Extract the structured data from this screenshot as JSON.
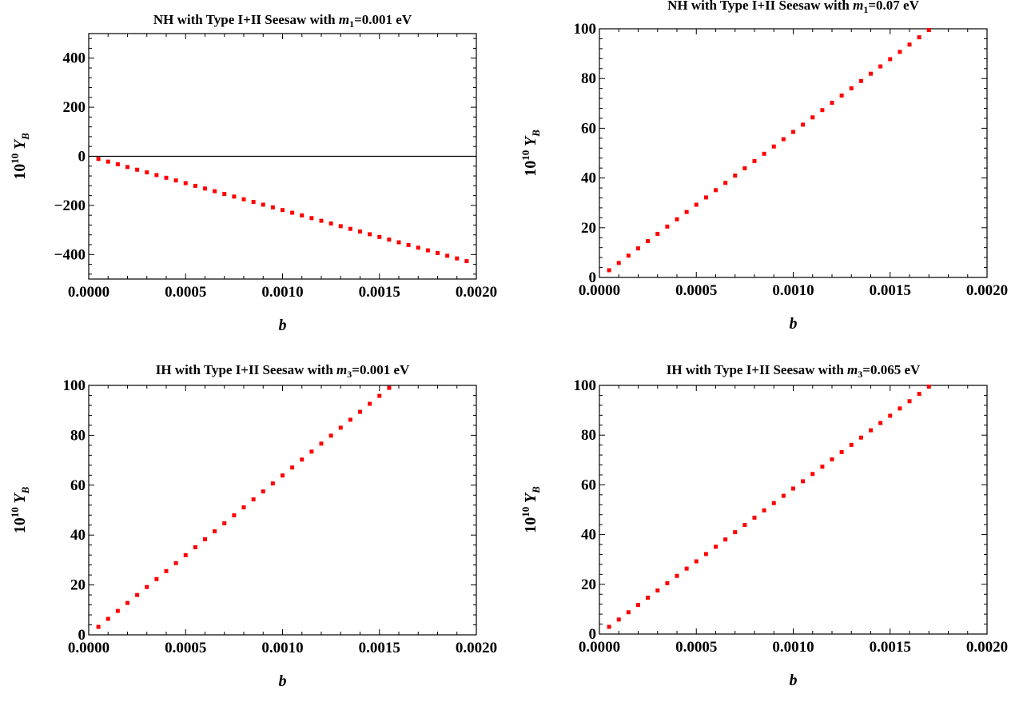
{
  "colors": {
    "marker": "#ff0000",
    "frame": "#000000",
    "background": "#ffffff"
  },
  "chart_data": [
    {
      "type": "scatter",
      "title": {
        "prefix": "NH with Type I+II Seesaw with ",
        "var": "m",
        "sub": "1",
        "suffix": "=0.001 eV"
      },
      "xlabel": "b",
      "ylabel": {
        "base": "10",
        "exp": "10",
        "var": "Y",
        "sub": "B"
      },
      "xlim": [
        0,
        0.002
      ],
      "ylim": [
        -500,
        500
      ],
      "xticks": [
        0,
        0.0005,
        0.001,
        0.0015,
        0.002
      ],
      "xtick_labels": [
        "0.0000",
        "0.0005",
        "0.0010",
        "0.0015",
        "0.0020"
      ],
      "yticks": [
        -400,
        -200,
        0,
        200,
        400
      ],
      "ytick_labels": [
        "−400",
        "−200",
        "0",
        "200",
        "400"
      ],
      "zero_line": true,
      "series": [
        {
          "marker": "square",
          "x_start": 5e-05,
          "x_step": 5e-05,
          "count": 39,
          "y_start": -10.7,
          "y_end": -427
        }
      ]
    },
    {
      "type": "scatter",
      "title": {
        "prefix": "NH with Type I+II Seesaw with ",
        "var": "m",
        "sub": "1",
        "suffix": "=0.07 eV"
      },
      "xlabel": "b",
      "ylabel": {
        "base": "10",
        "exp": "10",
        "var": "Y",
        "sub": "B"
      },
      "xlim": [
        0,
        0.002
      ],
      "ylim": [
        0,
        100
      ],
      "xticks": [
        0,
        0.0005,
        0.001,
        0.0015,
        0.002
      ],
      "xtick_labels": [
        "0.0000",
        "0.0005",
        "0.0010",
        "0.0015",
        "0.0020"
      ],
      "yticks": [
        0,
        20,
        40,
        60,
        80,
        100
      ],
      "ytick_labels": [
        "0",
        "20",
        "40",
        "60",
        "80",
        "100"
      ],
      "zero_line": false,
      "series": [
        {
          "marker": "square",
          "x_start": 5e-05,
          "x_step": 5e-05,
          "count": 34,
          "y_start": 2.9,
          "y_end": 99.5
        }
      ]
    },
    {
      "type": "scatter",
      "title": {
        "prefix": "IH with Type I+II Seesaw with ",
        "var": "m",
        "sub": "3",
        "suffix": "=0.001 eV"
      },
      "xlabel": "b",
      "ylabel": {
        "base": "10",
        "exp": "10",
        "var": "Y",
        "sub": "B"
      },
      "xlim": [
        0,
        0.002
      ],
      "ylim": [
        0,
        100
      ],
      "xticks": [
        0,
        0.0005,
        0.001,
        0.0015,
        0.002
      ],
      "xtick_labels": [
        "0.0000",
        "0.0005",
        "0.0010",
        "0.0015",
        "0.0020"
      ],
      "yticks": [
        0,
        20,
        40,
        60,
        80,
        100
      ],
      "ytick_labels": [
        "0",
        "20",
        "40",
        "60",
        "80",
        "100"
      ],
      "zero_line": false,
      "series": [
        {
          "marker": "square",
          "x_start": 5e-05,
          "x_step": 5e-05,
          "count": 31,
          "y_start": 3.2,
          "y_end": 99
        }
      ]
    },
    {
      "type": "scatter",
      "title": {
        "prefix": "IH with Type I+II Seesaw with ",
        "var": "m",
        "sub": "3",
        "suffix": "=0.065 eV"
      },
      "xlabel": "b",
      "ylabel": {
        "base": "10",
        "exp": "10",
        "var": "Y",
        "sub": "B"
      },
      "xlim": [
        0,
        0.002
      ],
      "ylim": [
        0,
        100
      ],
      "xticks": [
        0,
        0.0005,
        0.001,
        0.0015,
        0.002
      ],
      "xtick_labels": [
        "0.0000",
        "0.0005",
        "0.0010",
        "0.0015",
        "0.0020"
      ],
      "yticks": [
        0,
        20,
        40,
        60,
        80,
        100
      ],
      "ytick_labels": [
        "0",
        "20",
        "40",
        "60",
        "80",
        "100"
      ],
      "zero_line": false,
      "series": [
        {
          "marker": "square",
          "x_start": 5e-05,
          "x_step": 5e-05,
          "count": 34,
          "y_start": 2.9,
          "y_end": 99.5
        }
      ]
    }
  ]
}
